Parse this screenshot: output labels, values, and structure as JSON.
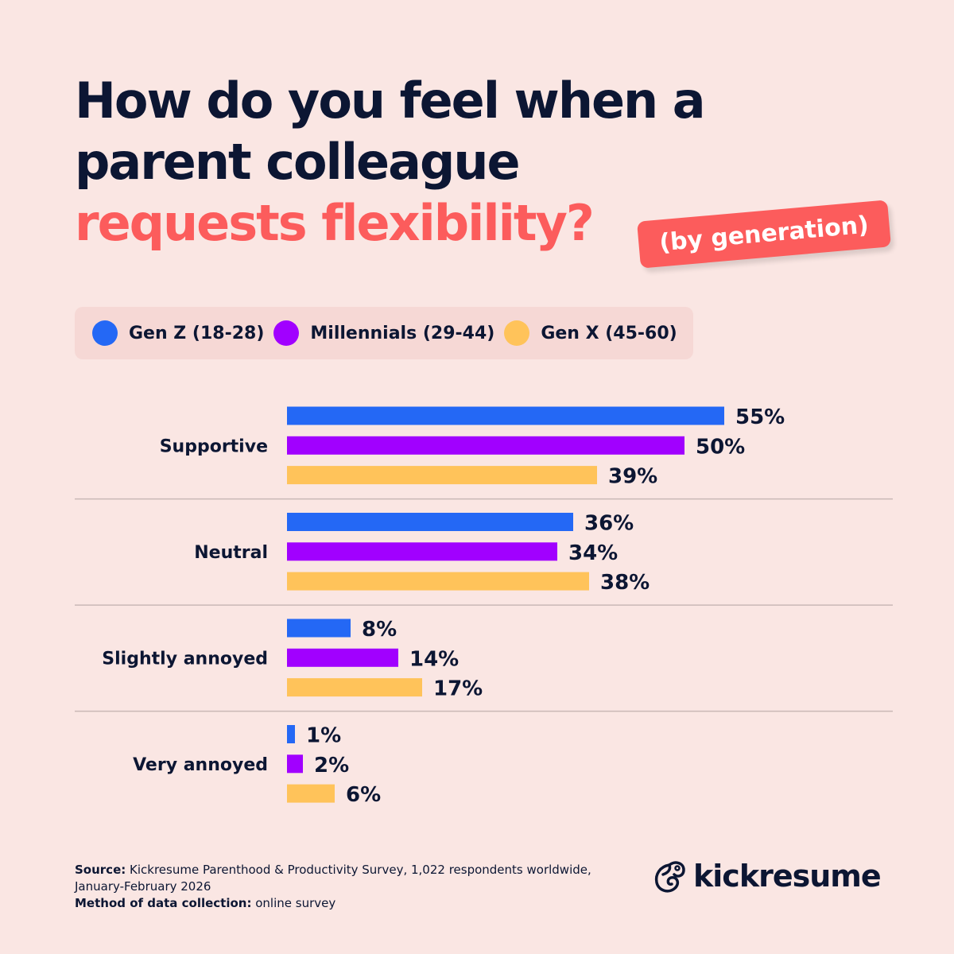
{
  "title": {
    "line1": "How do you feel when a",
    "line2": "parent colleague",
    "line3": "requests flexibility?",
    "badge": "(by generation)"
  },
  "colors": {
    "background": "#fae6e3",
    "text": "#0c1633",
    "accent": "#fc5c5c"
  },
  "chart_data": {
    "type": "bar",
    "orientation": "horizontal",
    "categories": [
      "Supportive",
      "Neutral",
      "Slightly annoyed",
      "Very annoyed"
    ],
    "series": [
      {
        "name": "Gen Z (18-28)",
        "color": "#2468f5",
        "values": [
          55,
          36,
          8,
          1
        ]
      },
      {
        "name": "Millennials (29-44)",
        "color": "#a100ff",
        "values": [
          50,
          34,
          14,
          2
        ]
      },
      {
        "name": "Gen X (45-60)",
        "color": "#ffc35a",
        "values": [
          39,
          38,
          17,
          6
        ]
      }
    ],
    "value_suffix": "%",
    "legend": "top",
    "grid": false
  },
  "footer": {
    "source_label": "Source:",
    "source_text": " Kickresume Parenthood & Productivity Survey, 1,022 respondents worldwide,",
    "source_text2": "January-February 2026",
    "method_label": "Method of data collection:",
    "method_text": " online survey"
  },
  "logo": {
    "text": "kickresume",
    "icon": "chameleon-icon"
  }
}
